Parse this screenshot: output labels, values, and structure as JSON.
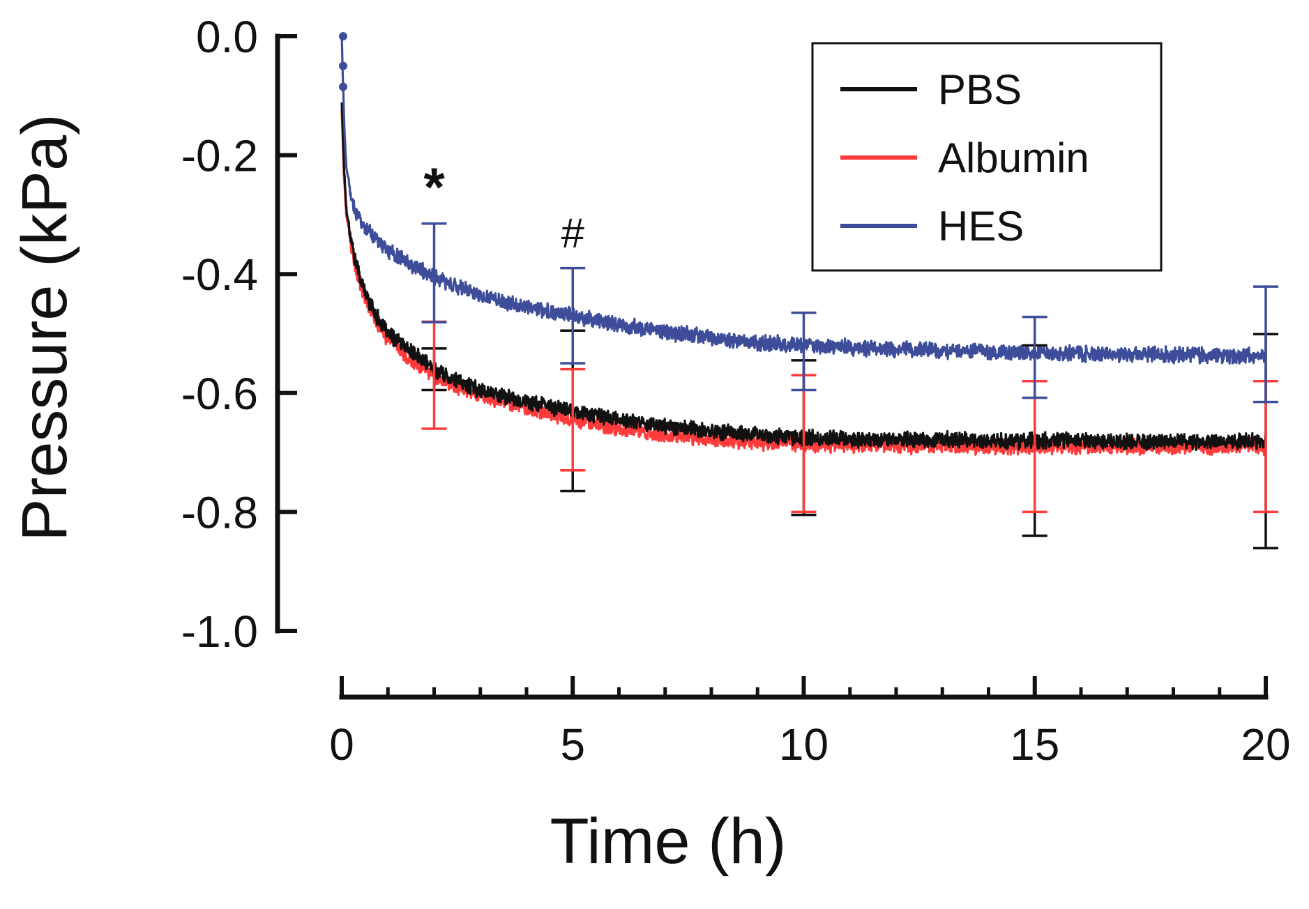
{
  "chart_data": {
    "type": "line",
    "title": "",
    "xlabel": "Time (h)",
    "ylabel": "Pressure (kPa)",
    "xlim": [
      0,
      20
    ],
    "ylim": [
      -1.0,
      0.0
    ],
    "x_ticks": [
      0,
      5,
      10,
      15,
      20
    ],
    "x_tick_labels": [
      "0",
      "5",
      "10",
      "15",
      "20"
    ],
    "x_minor_step": 1,
    "y_ticks": [
      0.0,
      -0.2,
      -0.4,
      -0.6,
      -0.8,
      -1.0
    ],
    "y_tick_labels": [
      "0.0",
      "-0.2",
      "-0.4",
      "-0.6",
      "-0.8",
      "-1.0"
    ],
    "grid": false,
    "legend_position": "top-right",
    "series": [
      {
        "name": "PBS",
        "color": "#111111",
        "x": [
          0,
          0.05,
          0.1,
          0.2,
          0.3,
          0.5,
          0.75,
          1,
          1.5,
          2,
          2.5,
          3,
          4,
          5,
          6,
          7,
          8,
          9,
          10,
          11,
          12,
          13,
          14,
          15,
          16,
          17,
          18,
          19,
          20
        ],
        "y": [
          -0.11,
          -0.22,
          -0.29,
          -0.34,
          -0.38,
          -0.43,
          -0.47,
          -0.5,
          -0.53,
          -0.56,
          -0.58,
          -0.595,
          -0.615,
          -0.63,
          -0.645,
          -0.655,
          -0.665,
          -0.67,
          -0.675,
          -0.677,
          -0.678,
          -0.679,
          -0.68,
          -0.68,
          -0.68,
          -0.681,
          -0.681,
          -0.681,
          -0.681
        ],
        "error_bars": [
          {
            "x": 2,
            "y": -0.56,
            "err": 0.035
          },
          {
            "x": 5,
            "y": -0.63,
            "err": 0.135
          },
          {
            "x": 10,
            "y": -0.675,
            "err": 0.13
          },
          {
            "x": 15,
            "y": -0.68,
            "err": 0.16
          },
          {
            "x": 20,
            "y": -0.681,
            "err": 0.18
          }
        ]
      },
      {
        "name": "Albumin",
        "color": "#ff3b3b",
        "x": [
          0,
          0.05,
          0.1,
          0.2,
          0.3,
          0.5,
          0.75,
          1,
          1.5,
          2,
          2.5,
          3,
          4,
          5,
          6,
          7,
          8,
          9,
          10,
          11,
          12,
          13,
          14,
          15,
          16,
          17,
          18,
          19,
          20
        ],
        "y": [
          -0.12,
          -0.24,
          -0.3,
          -0.35,
          -0.39,
          -0.44,
          -0.48,
          -0.51,
          -0.545,
          -0.57,
          -0.59,
          -0.605,
          -0.625,
          -0.645,
          -0.66,
          -0.67,
          -0.678,
          -0.682,
          -0.685,
          -0.687,
          -0.688,
          -0.689,
          -0.69,
          -0.69,
          -0.69,
          -0.69,
          -0.69,
          -0.69,
          -0.69
        ],
        "error_bars": [
          {
            "x": 2,
            "y": -0.57,
            "err": 0.09
          },
          {
            "x": 5,
            "y": -0.645,
            "err": 0.085
          },
          {
            "x": 10,
            "y": -0.685,
            "err": 0.115
          },
          {
            "x": 15,
            "y": -0.69,
            "err": 0.11
          },
          {
            "x": 20,
            "y": -0.69,
            "err": 0.11
          }
        ]
      },
      {
        "name": "HES",
        "color": "#3e4d9a",
        "x": [
          0,
          0.05,
          0.1,
          0.2,
          0.3,
          0.5,
          0.75,
          1,
          1.5,
          2,
          2.5,
          3,
          4,
          5,
          6,
          7,
          8,
          9,
          10,
          11,
          12,
          13,
          14,
          15,
          16,
          17,
          18,
          19,
          20
        ],
        "y": [
          0.0,
          -0.14,
          -0.22,
          -0.27,
          -0.295,
          -0.32,
          -0.34,
          -0.36,
          -0.385,
          -0.405,
          -0.42,
          -0.435,
          -0.455,
          -0.47,
          -0.485,
          -0.497,
          -0.507,
          -0.515,
          -0.52,
          -0.523,
          -0.526,
          -0.529,
          -0.531,
          -0.533,
          -0.534,
          -0.535,
          -0.536,
          -0.537,
          -0.538
        ],
        "error_bars": [
          {
            "x": 2,
            "y": -0.398,
            "err": 0.083
          },
          {
            "x": 5,
            "y": -0.47,
            "err": 0.08
          },
          {
            "x": 10,
            "y": -0.53,
            "err": 0.065
          },
          {
            "x": 15,
            "y": -0.54,
            "err": 0.068
          },
          {
            "x": 20,
            "y": -0.518,
            "err": 0.097
          }
        ]
      }
    ],
    "annotations": [
      {
        "text": "*",
        "x": 2,
        "y": -0.285
      },
      {
        "text": "#",
        "x": 5,
        "y": -0.355
      }
    ]
  }
}
